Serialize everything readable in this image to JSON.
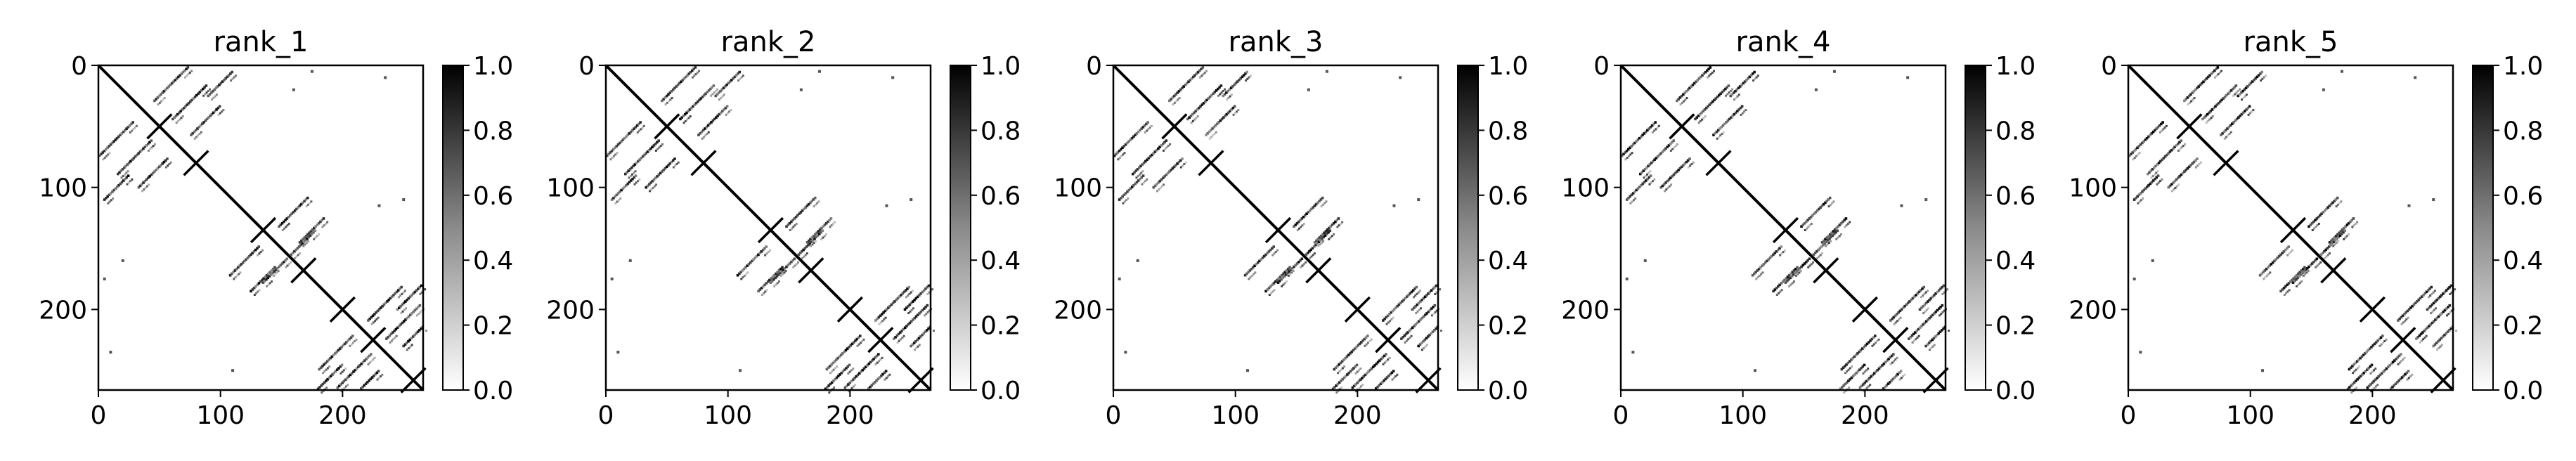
{
  "chart_data": [
    {
      "type": "heatmap",
      "title": "rank_1",
      "xlim": [
        0,
        266
      ],
      "ylim": [
        266,
        0
      ],
      "xticks": [
        0,
        100,
        200
      ],
      "yticks": [
        0,
        100,
        200
      ],
      "colormap": "Greys",
      "colorbar": {
        "range": [
          0.0,
          1.0
        ],
        "ticks": [
          "0.0",
          "0.2",
          "0.4",
          "0.6",
          "0.8",
          "1.0"
        ]
      }
    },
    {
      "type": "heatmap",
      "title": "rank_2",
      "xlim": [
        0,
        266
      ],
      "ylim": [
        266,
        0
      ],
      "xticks": [
        0,
        100,
        200
      ],
      "yticks": [
        0,
        100,
        200
      ],
      "colormap": "Greys",
      "colorbar": {
        "range": [
          0.0,
          1.0
        ],
        "ticks": [
          "0.0",
          "0.2",
          "0.4",
          "0.6",
          "0.8",
          "1.0"
        ]
      }
    },
    {
      "type": "heatmap",
      "title": "rank_3",
      "xlim": [
        0,
        266
      ],
      "ylim": [
        266,
        0
      ],
      "xticks": [
        0,
        100,
        200
      ],
      "yticks": [
        0,
        100,
        200
      ],
      "colormap": "Greys",
      "colorbar": {
        "range": [
          0.0,
          1.0
        ],
        "ticks": [
          "0.0",
          "0.2",
          "0.4",
          "0.6",
          "0.8",
          "1.0"
        ]
      }
    },
    {
      "type": "heatmap",
      "title": "rank_4",
      "xlim": [
        0,
        266
      ],
      "ylim": [
        266,
        0
      ],
      "xticks": [
        0,
        100,
        200
      ],
      "yticks": [
        0,
        100,
        200
      ],
      "colormap": "Greys",
      "colorbar": {
        "range": [
          0.0,
          1.0
        ],
        "ticks": [
          "0.0",
          "0.2",
          "0.4",
          "0.6",
          "0.8",
          "1.0"
        ]
      }
    },
    {
      "type": "heatmap",
      "title": "rank_5",
      "xlim": [
        0,
        266
      ],
      "ylim": [
        266,
        0
      ],
      "xticks": [
        0,
        100,
        200
      ],
      "yticks": [
        0,
        100,
        200
      ],
      "colormap": "Greys",
      "colorbar": {
        "range": [
          0.0,
          1.0
        ],
        "ticks": [
          "0.0",
          "0.2",
          "0.4",
          "0.6",
          "0.8",
          "1.0"
        ]
      }
    }
  ]
}
